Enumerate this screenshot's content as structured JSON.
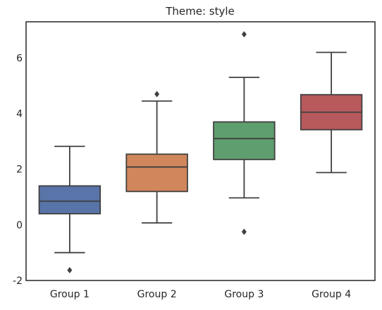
{
  "chart_data": {
    "type": "boxplot",
    "title": "Theme: style",
    "xlabel": "",
    "ylabel": "",
    "ylim": [
      -2,
      7.3
    ],
    "yticks": [
      -2,
      0,
      2,
      4,
      6
    ],
    "grid": false,
    "legend": "none",
    "categories": [
      "Group 1",
      "Group 2",
      "Group 3",
      "Group 4"
    ],
    "boxes": [
      {
        "category": "Group 1",
        "whisker_low": -1.0,
        "q1": 0.4,
        "median": 0.85,
        "q3": 1.4,
        "whisker_high": 2.82,
        "outliers": [
          -1.63
        ],
        "color": "#5874a8"
      },
      {
        "category": "Group 2",
        "whisker_low": 0.07,
        "q1": 1.2,
        "median": 2.08,
        "q3": 2.54,
        "whisker_high": 4.45,
        "outliers": [
          4.7
        ],
        "color": "#d1875c"
      },
      {
        "category": "Group 3",
        "whisker_low": 0.97,
        "q1": 2.35,
        "median": 3.1,
        "q3": 3.7,
        "whisker_high": 5.3,
        "outliers": [
          -0.25,
          6.85
        ],
        "color": "#5f9e6e"
      },
      {
        "category": "Group 4",
        "whisker_low": 1.88,
        "q1": 3.42,
        "median": 4.05,
        "q3": 4.68,
        "whisker_high": 6.2,
        "outliers": [],
        "color": "#b85a5d"
      }
    ],
    "style": {
      "edge_color": "#3f3f3f",
      "frame_color": "#262626",
      "text_color": "#262626",
      "background": "#ffffff"
    }
  }
}
